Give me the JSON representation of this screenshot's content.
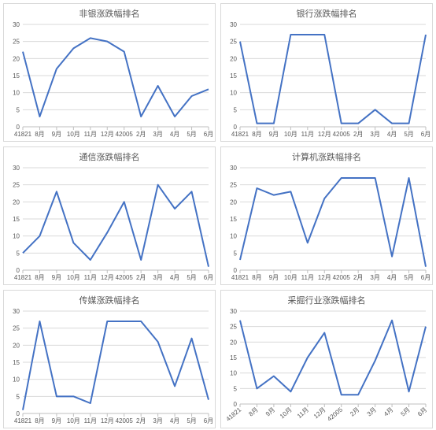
{
  "global": {
    "line_color": "#4472c4",
    "grid_color": "#d9d9d9",
    "axis_color": "#bfbfbf",
    "background_color": "#ffffff",
    "title_fontsize": 11,
    "tick_fontsize": 8,
    "title_color": "#595959",
    "tick_color": "#595959",
    "line_width": 2,
    "ylim": [
      0,
      30
    ],
    "ytick_step": 5,
    "categories": [
      "41821",
      "8月",
      "9月",
      "10月",
      "11月",
      "12月",
      "42005",
      "2月",
      "3月",
      "4月",
      "5月",
      "6月"
    ]
  },
  "charts": [
    {
      "title": "非银涨跌幅排名",
      "values": [
        22,
        3,
        17,
        23,
        26,
        25,
        22,
        3,
        12,
        3,
        9,
        11
      ],
      "x_label_rotation": 0
    },
    {
      "title": "银行涨跌幅排名",
      "values": [
        25,
        1,
        1,
        27,
        27,
        27,
        1,
        1,
        5,
        1,
        1,
        27
      ],
      "x_label_rotation": 0
    },
    {
      "title": "通信涨跌幅排名",
      "values": [
        5,
        10,
        23,
        8,
        3,
        11,
        20,
        3,
        25,
        18,
        23,
        1
      ],
      "x_label_rotation": 0
    },
    {
      "title": "计算机涨跌幅排名",
      "values": [
        3,
        24,
        22,
        23,
        8,
        21,
        27,
        27,
        27,
        4,
        27,
        1
      ],
      "x_label_rotation": 0
    },
    {
      "title": "传媒涨跌幅排名",
      "values": [
        1,
        27,
        5,
        5,
        3,
        27,
        27,
        27,
        21,
        8,
        22,
        4
      ],
      "x_label_rotation": 0
    },
    {
      "title": "采掘行业涨跌幅排名",
      "values": [
        27,
        5,
        9,
        4,
        15,
        23,
        3,
        3,
        14,
        27,
        4,
        25
      ],
      "x_label_rotation": 40
    }
  ]
}
